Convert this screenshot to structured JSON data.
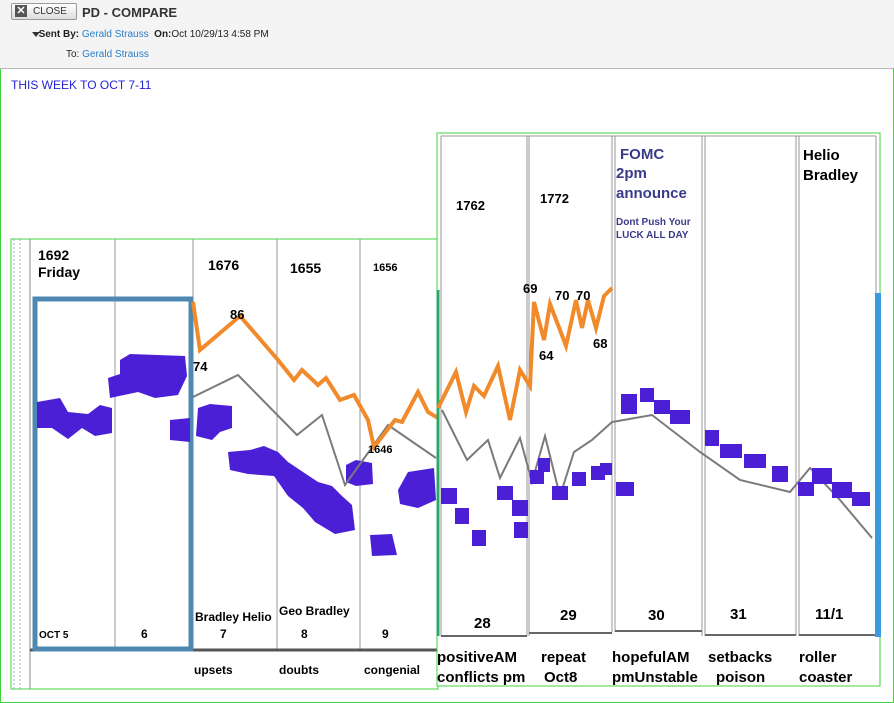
{
  "header": {
    "close_label": "CLOSE",
    "subject": "PD - COMPARE",
    "sent_by_label": "Sent By:",
    "sender": "Gerald Strauss",
    "on_label": "On:",
    "date": "Oct 10/29/13 4:58 PM",
    "to_label": "To:",
    "recipient": "Gerald Strauss"
  },
  "body_text": "THIS WEEK TO OCT 7-11",
  "chart": {
    "left_panel": {
      "price_labels": [
        "1692\nFriday",
        "1676",
        "1655",
        "1656"
      ],
      "day_labels": [
        "OCT 5",
        "6",
        "7",
        "8",
        "9"
      ],
      "notes": [
        "Bradley Helio",
        "Geo Bradley"
      ],
      "bottom_words": [
        "upsets",
        "doubts",
        "congenial"
      ],
      "point_labels": [
        "86",
        "74",
        "1646"
      ]
    },
    "right_panel": {
      "price_labels": [
        "1762",
        "1772"
      ],
      "fomc": [
        "FOMC",
        "2pm",
        "announce"
      ],
      "fomc_warning": [
        "Dont Push Your",
        "LUCK ALL DAY"
      ],
      "helio": [
        "Helio",
        "Bradley"
      ],
      "point_labels": [
        "69",
        "70",
        "70",
        "64",
        "68"
      ],
      "day_labels": [
        "28",
        "29",
        "30",
        "31",
        "11/1"
      ],
      "bottom_words": [
        [
          "positiveAM",
          "conflicts pm"
        ],
        [
          "repeat",
          "Oct8"
        ],
        [
          "hopefulAM",
          "pmUnstable"
        ],
        [
          "setbacks",
          "poison"
        ],
        [
          "roller",
          "coaster"
        ]
      ]
    },
    "colors": {
      "orange": "#f08a2a",
      "purple": "#4a1fd6",
      "blue_box": "#4f88b0",
      "gray": "#7a7a7a",
      "green": "#3fd43f"
    }
  }
}
